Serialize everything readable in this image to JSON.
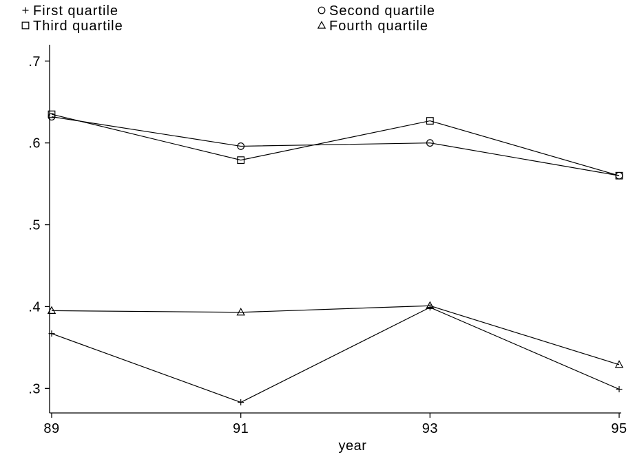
{
  "chart_data": {
    "type": "line",
    "xlabel": "year",
    "ylabel": "",
    "x": [
      89,
      91,
      93,
      95
    ],
    "xticks": [
      "89",
      "91",
      "93",
      "95"
    ],
    "ylim": [
      0.27,
      0.72
    ],
    "yticks": [
      0.3,
      0.4,
      0.5,
      0.6,
      0.7
    ],
    "ytick_labels": [
      ".3",
      ".4",
      ".5",
      ".6",
      ".7"
    ],
    "legend_placement": "top",
    "grid": false,
    "series": [
      {
        "name": "First quartile",
        "marker": "plus",
        "values": [
          0.367,
          0.283,
          0.399,
          0.299
        ]
      },
      {
        "name": "Second quartile",
        "marker": "circle",
        "values": [
          0.632,
          0.596,
          0.6,
          0.56
        ]
      },
      {
        "name": "Third quartile",
        "marker": "square",
        "values": [
          0.635,
          0.579,
          0.627,
          0.56
        ]
      },
      {
        "name": "Fourth quartile",
        "marker": "triangle",
        "values": [
          0.395,
          0.393,
          0.401,
          0.329
        ]
      }
    ]
  }
}
